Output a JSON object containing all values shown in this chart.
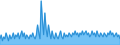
{
  "values": [
    3,
    5,
    2,
    4,
    3,
    6,
    4,
    2,
    5,
    3,
    4,
    6,
    3,
    5,
    4,
    6,
    3,
    5,
    7,
    4,
    6,
    3,
    5,
    4,
    3,
    5,
    4,
    6,
    4,
    3,
    5,
    10,
    6,
    3,
    22,
    12,
    5,
    16,
    8,
    4,
    10,
    6,
    3,
    7,
    4,
    3,
    6,
    4,
    3,
    5,
    7,
    4,
    3,
    6,
    4,
    5,
    4,
    6,
    5,
    4,
    6,
    5,
    7,
    5,
    6,
    4,
    6,
    5,
    7,
    5,
    6,
    7,
    5,
    6,
    4,
    5,
    7,
    5,
    6,
    4,
    7,
    5,
    4,
    6,
    5,
    4,
    6,
    5,
    4,
    6,
    5,
    7,
    5,
    6,
    4,
    5,
    6,
    4,
    5,
    3
  ],
  "line_color": "#2b8fd4",
  "fill_color": "#5bb8f5",
  "fill_alpha": 0.85,
  "line_width": 0.7,
  "background_color": "#ffffff"
}
